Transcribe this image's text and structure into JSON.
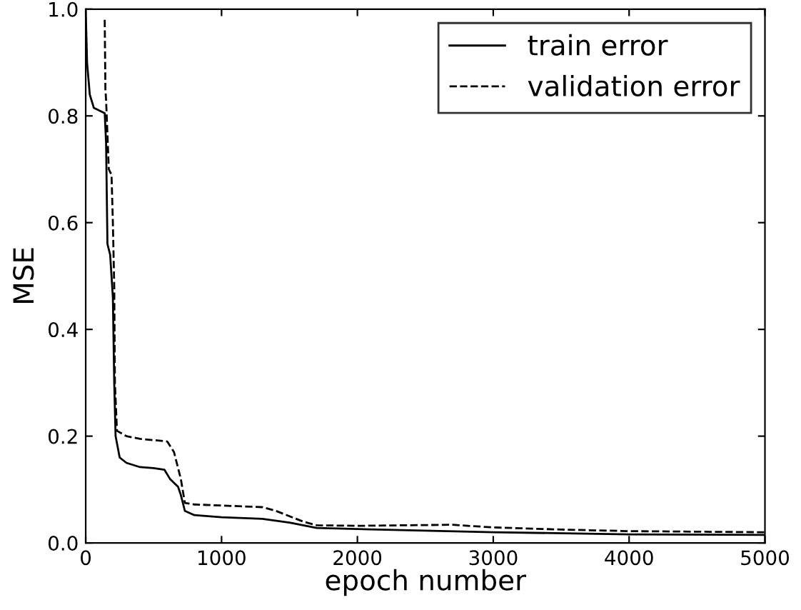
{
  "chart_data": {
    "type": "line",
    "xlabel": "epoch number",
    "ylabel": "MSE",
    "xlim": [
      0,
      5000
    ],
    "ylim": [
      0.0,
      1.0
    ],
    "xticks": [
      0,
      1000,
      2000,
      3000,
      4000,
      5000
    ],
    "yticks": [
      {
        "value": 0,
        "label": "0.0"
      },
      0.2,
      0.4,
      0.6,
      0.8,
      {
        "value": 1,
        "label": "1.0"
      }
    ],
    "grid": false,
    "legend": "top right",
    "series": [
      {
        "name": "train error",
        "color": "#000000",
        "line_style": "solid",
        "x": [
          0,
          10,
          30,
          60,
          100,
          140,
          150,
          160,
          180,
          200,
          210,
          220,
          250,
          300,
          400,
          500,
          580,
          620,
          680,
          700,
          730,
          800,
          1000,
          1300,
          1500,
          1700,
          2000,
          3000,
          4000,
          5000
        ],
        "values": [
          1.0,
          0.9,
          0.84,
          0.815,
          0.81,
          0.805,
          0.75,
          0.56,
          0.54,
          0.46,
          0.3,
          0.2,
          0.16,
          0.15,
          0.142,
          0.14,
          0.137,
          0.12,
          0.105,
          0.09,
          0.06,
          0.052,
          0.048,
          0.045,
          0.038,
          0.028,
          0.026,
          0.02,
          0.016,
          0.015
        ]
      },
      {
        "name": "validation error",
        "color": "#000000",
        "line_style": "dashed",
        "x": [
          140,
          145,
          150,
          170,
          190,
          200,
          210,
          215,
          230,
          300,
          400,
          600,
          650,
          700,
          730,
          800,
          1000,
          1300,
          1400,
          1600,
          1700,
          2000,
          2700,
          3000,
          3500,
          4000,
          5000
        ],
        "values": [
          0.98,
          0.85,
          0.83,
          0.7,
          0.69,
          0.6,
          0.48,
          0.3,
          0.21,
          0.2,
          0.195,
          0.19,
          0.17,
          0.12,
          0.075,
          0.072,
          0.07,
          0.067,
          0.06,
          0.04,
          0.033,
          0.032,
          0.034,
          0.029,
          0.025,
          0.022,
          0.02
        ]
      }
    ]
  }
}
